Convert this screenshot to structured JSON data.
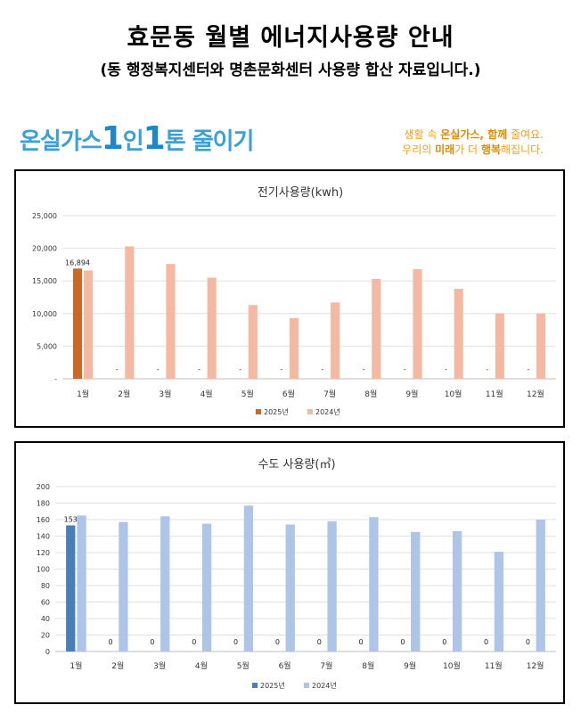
{
  "page": {
    "title": "효문동 월별 에너지사용량 안내",
    "subtitle": "(동 행정복지센터와 명촌문화센터 사용량 합산 자료입니다.)"
  },
  "banner": {
    "slogan_part1": "온실가스",
    "slogan_one1": "1",
    "slogan_in": "인",
    "slogan_one2": "1",
    "slogan_part2": "톤 줄이기",
    "right_line1_pre": "생활 속 ",
    "right_line1_bold": "온실가스, 함께",
    "right_line1_post": " 줄여요.",
    "right_line2_pre": "우리의 ",
    "right_line2_bold1": "미래",
    "right_line2_mid": "가 더 ",
    "right_line2_bold2": "행복",
    "right_line2_post": "해집니다."
  },
  "chart_data": [
    {
      "type": "bar",
      "title": "전기사용량(kwh)",
      "categories": [
        "1월",
        "2월",
        "3월",
        "4월",
        "5월",
        "6월",
        "7월",
        "8월",
        "9월",
        "10월",
        "11월",
        "12월"
      ],
      "y_ticks": [
        "-",
        "5,000",
        "10,000",
        "15,000",
        "20,000",
        "25,000"
      ],
      "ylim": [
        0,
        25000
      ],
      "colors": [
        "#c8692a",
        "#f4b9a3"
      ],
      "series": [
        {
          "name": "2025년",
          "values": [
            16894,
            0,
            0,
            0,
            0,
            0,
            0,
            0,
            0,
            0,
            0,
            0
          ],
          "labels": [
            "16,894",
            "-",
            "-",
            "-",
            "-",
            "-",
            "-",
            "-",
            "-",
            "-",
            "-",
            "-"
          ]
        },
        {
          "name": "2024년",
          "values": [
            16600,
            20300,
            17600,
            15500,
            11300,
            9300,
            11700,
            15300,
            16800,
            13800,
            10000,
            10000
          ]
        }
      ]
    },
    {
      "type": "bar",
      "title": "수도 사용량(㎥)",
      "categories": [
        "1월",
        "2월",
        "3월",
        "4월",
        "5월",
        "6월",
        "7월",
        "8월",
        "9월",
        "10월",
        "11월",
        "12월"
      ],
      "y_ticks": [
        "0",
        "20",
        "40",
        "60",
        "80",
        "100",
        "120",
        "140",
        "160",
        "180",
        "200"
      ],
      "ylim": [
        0,
        200
      ],
      "colors": [
        "#4a7fb5",
        "#aec5e8"
      ],
      "series": [
        {
          "name": "2025년",
          "values": [
            153,
            0,
            0,
            0,
            0,
            0,
            0,
            0,
            0,
            0,
            0,
            0
          ],
          "labels": [
            "153",
            "0",
            "0",
            "0",
            "0",
            "0",
            "0",
            "0",
            "0",
            "0",
            "0",
            "0"
          ]
        },
        {
          "name": "2024년",
          "values": [
            165,
            157,
            164,
            155,
            177,
            154,
            158,
            163,
            145,
            146,
            121,
            160
          ]
        }
      ]
    }
  ]
}
